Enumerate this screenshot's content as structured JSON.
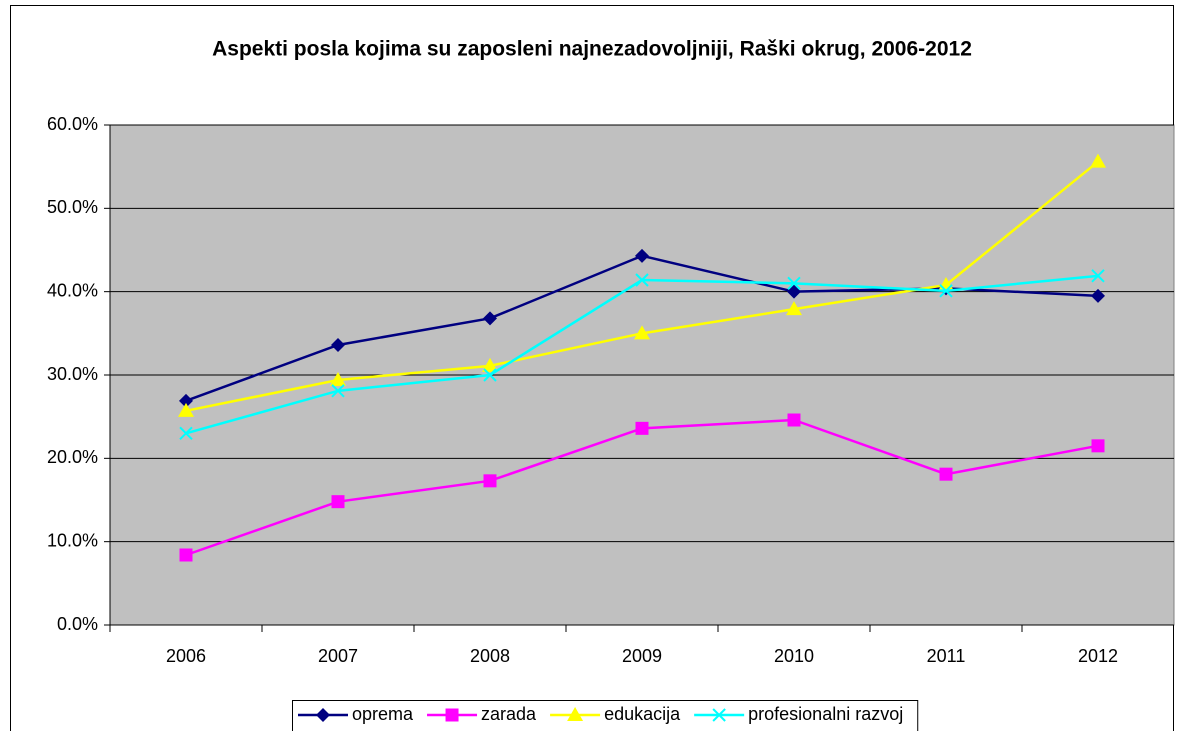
{
  "chart_data": {
    "type": "line",
    "title": "Aspekti posla kojima su zaposleni najnezadovoljniji, Raški okrug, 2006-2012",
    "categories": [
      "2006",
      "2007",
      "2008",
      "2009",
      "2010",
      "2011",
      "2012"
    ],
    "series": [
      {
        "name": "oprema",
        "color": "#000080",
        "marker": "diamond",
        "values": [
          26.9,
          33.6,
          36.8,
          44.3,
          40.0,
          40.4,
          39.5
        ]
      },
      {
        "name": "zarada",
        "color": "#ff00ff",
        "marker": "square",
        "values": [
          8.4,
          14.8,
          17.3,
          23.6,
          24.6,
          18.1,
          21.5
        ]
      },
      {
        "name": "edukacija",
        "color": "#ffff00",
        "marker": "triangle",
        "values": [
          25.7,
          29.4,
          31.1,
          35.0,
          37.9,
          40.8,
          55.6
        ]
      },
      {
        "name": "profesionalni razvoj",
        "color": "#00ffff",
        "marker": "x",
        "values": [
          23.0,
          28.1,
          30.0,
          41.4,
          41.0,
          40.1,
          41.9
        ]
      }
    ],
    "ylim": [
      0,
      60
    ],
    "yticks": [
      {
        "value": 0,
        "label": "0.0%"
      },
      {
        "value": 10,
        "label": "10.0%"
      },
      {
        "value": 20,
        "label": "20.0%"
      },
      {
        "value": 30,
        "label": "30.0%"
      },
      {
        "value": 40,
        "label": "40.0%"
      },
      {
        "value": 50,
        "label": "50.0%"
      },
      {
        "value": 60,
        "label": "60.0%"
      }
    ],
    "grid": true,
    "plot_background": "#c0c0c0",
    "legend": "bottom"
  }
}
